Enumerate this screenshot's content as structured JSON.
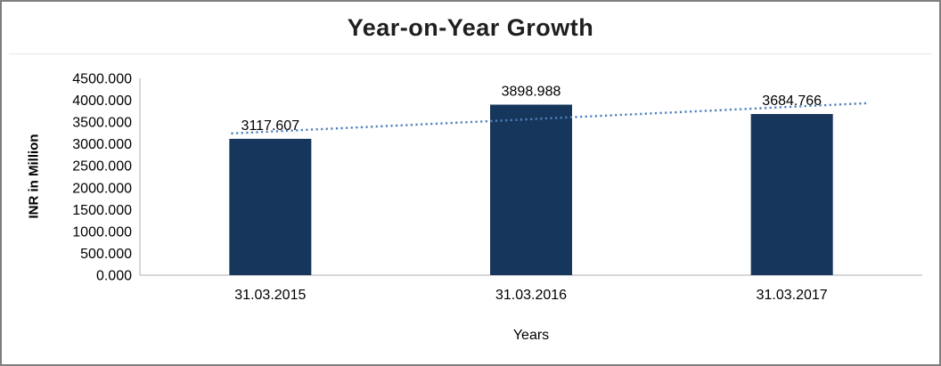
{
  "chart_data": {
    "type": "bar",
    "title": "Year-on-Year Growth",
    "categories": [
      "31.03.2015",
      "31.03.2016",
      "31.03.2017"
    ],
    "values": [
      3117.607,
      3898.988,
      3684.766
    ],
    "data_labels": [
      "3117.607",
      "3898.988",
      "3684.766"
    ],
    "xlabel": "Years",
    "ylabel": "INR in Million",
    "ylim": [
      0,
      4500
    ],
    "ytick_step": 500,
    "ytick_decimals": 3,
    "grid": false,
    "legend": false,
    "trendline": {
      "type": "linear",
      "style": "dotted"
    },
    "colors": {
      "bar": "#16365c",
      "trendline": "#4e81bd",
      "axis_line": "#bfbfbf",
      "text": "#000000",
      "title": "#1f1f1f"
    }
  }
}
